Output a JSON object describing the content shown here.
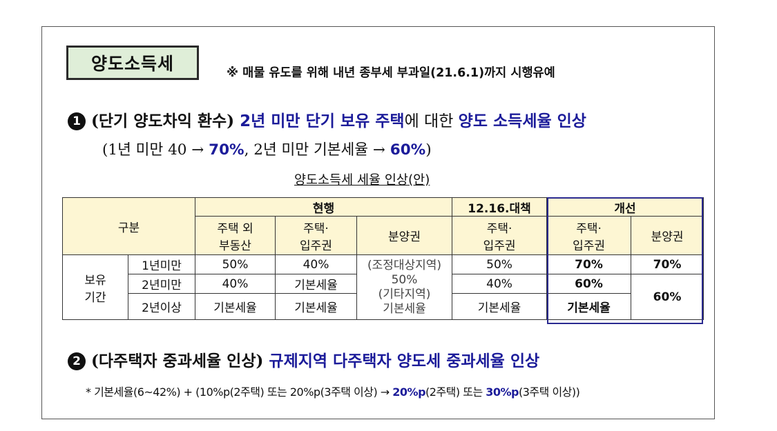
{
  "title": "양도소득세",
  "note": "※ 매물 유도를 위해 내년 종부세 부과일(21.6.1)까지 시행유예",
  "item1": {
    "marker": "1",
    "paren_open": "(",
    "label": "단기 양도차익 환수",
    "paren_close": ") ",
    "blue_a": "2년 미만 단기 보유 주택",
    "mid": "에 대한 ",
    "blue_b": "양도 소득세율 인상",
    "sub_pre": "(1년 미만 40 → ",
    "sub_b1": "70%",
    "sub_mid": ", 2년 미만 기본세율 → ",
    "sub_b2": "60%",
    "sub_post": ")"
  },
  "table": {
    "caption": "양도소득세 세율 인상(안)",
    "col_group": "구분",
    "current": "현행",
    "measure": "12.16.대책",
    "improved": "개선",
    "sub_headers": {
      "non_house_a": "주택 외",
      "non_house_b": "부동산",
      "house_a": "주택·",
      "house_b": "입주권",
      "presale": "분양권",
      "measure_a": "주택·",
      "measure_b": "입주권",
      "improved_house_a": "주택·",
      "improved_house_b": "입주권",
      "improved_presale": "분양권"
    },
    "period_label_a": "보유",
    "period_label_b": "기간",
    "rows": [
      {
        "period": "1년미만",
        "non_house": "50%",
        "house": "40%",
        "measure": "50%",
        "improved_house": "70%",
        "improved_presale": "70%"
      },
      {
        "period": "2년미만",
        "non_house": "40%",
        "house": "기본세율",
        "measure": "40%",
        "improved_house": "60%",
        "improved_presale": "60%"
      },
      {
        "period": "2년이상",
        "non_house": "기본세율",
        "house": "기본세율",
        "measure": "기본세율",
        "improved_house": "기본세율"
      }
    ],
    "presale_current": {
      "line1": "(조정대상지역)",
      "line2": "50%",
      "line3": "(기타지역)",
      "line4": "기본세율"
    }
  },
  "item2": {
    "marker": "2",
    "paren_open": "(",
    "label": "다주택자 중과세율 인상",
    "paren_close": ") ",
    "blue": "규제지역 다주택자 양도세 중과세율 인상",
    "detail_pre": "* 기본세율(6~42%) + (10%p(2주택) 또는 20%p(3주택 이상) → ",
    "detail_b1": "20%p",
    "detail_mid1": "(2주택) 또는 ",
    "detail_b2": "30%p",
    "detail_post": "(3주택 이상))"
  }
}
